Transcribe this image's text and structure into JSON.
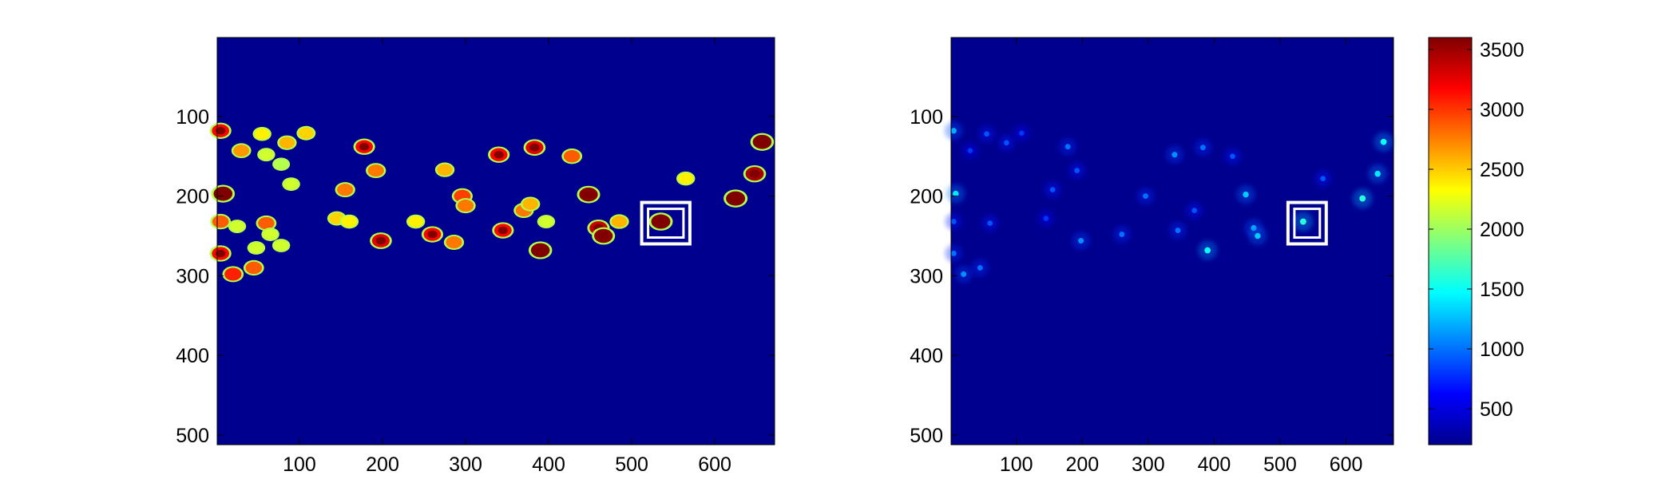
{
  "chart_data": [
    {
      "type": "heatmap",
      "title": "",
      "xlabel": "",
      "ylabel": "",
      "colormap": "jet",
      "background_color": "#00008f",
      "x_ticks": [
        "100",
        "200",
        "300",
        "400",
        "500",
        "600"
      ],
      "y_ticks": [
        "100",
        "200",
        "300",
        "400",
        "500"
      ],
      "xlim": [
        1,
        672
      ],
      "ylim": [
        1,
        512
      ],
      "y_reversed": true,
      "highlight_box": {
        "x": [
          512,
          570
        ],
        "y": [
          208,
          260
        ],
        "color": "#ffffff",
        "style": "double"
      },
      "blobs": [
        {
          "x": 5,
          "y": 118,
          "v": 3000
        },
        {
          "x": 30,
          "y": 143,
          "v": 2500
        },
        {
          "x": 55,
          "y": 122,
          "v": 2200
        },
        {
          "x": 60,
          "y": 148,
          "v": 2000
        },
        {
          "x": 85,
          "y": 133,
          "v": 2400
        },
        {
          "x": 108,
          "y": 121,
          "v": 2300
        },
        {
          "x": 78,
          "y": 160,
          "v": 1900
        },
        {
          "x": 90,
          "y": 185,
          "v": 2000
        },
        {
          "x": 178,
          "y": 138,
          "v": 3000
        },
        {
          "x": 192,
          "y": 168,
          "v": 2600
        },
        {
          "x": 275,
          "y": 167,
          "v": 2400
        },
        {
          "x": 340,
          "y": 148,
          "v": 3000
        },
        {
          "x": 383,
          "y": 139,
          "v": 3100
        },
        {
          "x": 428,
          "y": 150,
          "v": 2700
        },
        {
          "x": 565,
          "y": 178,
          "v": 2200
        },
        {
          "x": 648,
          "y": 172,
          "v": 3300
        },
        {
          "x": 657,
          "y": 132,
          "v": 3500
        },
        {
          "x": 8,
          "y": 197,
          "v": 3500
        },
        {
          "x": 155,
          "y": 192,
          "v": 2600
        },
        {
          "x": 296,
          "y": 200,
          "v": 2800
        },
        {
          "x": 300,
          "y": 212,
          "v": 2600
        },
        {
          "x": 370,
          "y": 218,
          "v": 2600
        },
        {
          "x": 378,
          "y": 210,
          "v": 2400
        },
        {
          "x": 448,
          "y": 198,
          "v": 3400
        },
        {
          "x": 625,
          "y": 203,
          "v": 3600
        },
        {
          "x": 5,
          "y": 232,
          "v": 2700
        },
        {
          "x": 25,
          "y": 238,
          "v": 2000
        },
        {
          "x": 60,
          "y": 234,
          "v": 2700
        },
        {
          "x": 65,
          "y": 248,
          "v": 2000
        },
        {
          "x": 145,
          "y": 228,
          "v": 2300
        },
        {
          "x": 160,
          "y": 232,
          "v": 2200
        },
        {
          "x": 240,
          "y": 232,
          "v": 2200
        },
        {
          "x": 260,
          "y": 248,
          "v": 3000
        },
        {
          "x": 345,
          "y": 243,
          "v": 3000
        },
        {
          "x": 397,
          "y": 232,
          "v": 2000
        },
        {
          "x": 460,
          "y": 240,
          "v": 3200
        },
        {
          "x": 466,
          "y": 250,
          "v": 3400
        },
        {
          "x": 485,
          "y": 232,
          "v": 2400
        },
        {
          "x": 535,
          "y": 232,
          "v": 3600
        },
        {
          "x": 198,
          "y": 256,
          "v": 3100
        },
        {
          "x": 286,
          "y": 258,
          "v": 2600
        },
        {
          "x": 390,
          "y": 268,
          "v": 3500
        },
        {
          "x": 48,
          "y": 265,
          "v": 2000
        },
        {
          "x": 78,
          "y": 262,
          "v": 2000
        },
        {
          "x": 5,
          "y": 272,
          "v": 3000
        },
        {
          "x": 20,
          "y": 298,
          "v": 2900
        },
        {
          "x": 45,
          "y": 290,
          "v": 2700
        }
      ]
    },
    {
      "type": "heatmap",
      "title": "",
      "xlabel": "",
      "ylabel": "",
      "colormap": "jet",
      "background_color": "#00008f",
      "x_ticks": [
        "100",
        "200",
        "300",
        "400",
        "500",
        "600"
      ],
      "y_ticks": [
        "100",
        "200",
        "300",
        "400",
        "500"
      ],
      "xlim": [
        1,
        672
      ],
      "ylim": [
        1,
        512
      ],
      "y_reversed": true,
      "highlight_box": {
        "x": [
          512,
          570
        ],
        "y": [
          208,
          260
        ],
        "color": "#ffffff",
        "style": "double"
      },
      "colorbar": {
        "range": [
          200,
          3600
        ],
        "ticks": [
          "3500",
          "3000",
          "2500",
          "2000",
          "1500",
          "1000",
          "500"
        ]
      },
      "blobs": [
        {
          "x": 5,
          "y": 118,
          "v": 1200
        },
        {
          "x": 30,
          "y": 143,
          "v": 800
        },
        {
          "x": 55,
          "y": 122,
          "v": 900
        },
        {
          "x": 85,
          "y": 133,
          "v": 900
        },
        {
          "x": 108,
          "y": 121,
          "v": 800
        },
        {
          "x": 178,
          "y": 138,
          "v": 1000
        },
        {
          "x": 192,
          "y": 168,
          "v": 900
        },
        {
          "x": 340,
          "y": 148,
          "v": 1100
        },
        {
          "x": 383,
          "y": 139,
          "v": 1000
        },
        {
          "x": 428,
          "y": 150,
          "v": 900
        },
        {
          "x": 565,
          "y": 178,
          "v": 900
        },
        {
          "x": 648,
          "y": 172,
          "v": 1400
        },
        {
          "x": 657,
          "y": 132,
          "v": 1500
        },
        {
          "x": 8,
          "y": 197,
          "v": 1400
        },
        {
          "x": 155,
          "y": 192,
          "v": 900
        },
        {
          "x": 296,
          "y": 200,
          "v": 1000
        },
        {
          "x": 370,
          "y": 218,
          "v": 900
        },
        {
          "x": 448,
          "y": 198,
          "v": 1300
        },
        {
          "x": 625,
          "y": 203,
          "v": 1600
        },
        {
          "x": 5,
          "y": 232,
          "v": 900
        },
        {
          "x": 60,
          "y": 234,
          "v": 900
        },
        {
          "x": 145,
          "y": 228,
          "v": 800
        },
        {
          "x": 260,
          "y": 248,
          "v": 1000
        },
        {
          "x": 345,
          "y": 243,
          "v": 1000
        },
        {
          "x": 460,
          "y": 240,
          "v": 1200
        },
        {
          "x": 466,
          "y": 250,
          "v": 1300
        },
        {
          "x": 535,
          "y": 232,
          "v": 1600
        },
        {
          "x": 198,
          "y": 256,
          "v": 1100
        },
        {
          "x": 390,
          "y": 268,
          "v": 1500
        },
        {
          "x": 5,
          "y": 272,
          "v": 1000
        },
        {
          "x": 20,
          "y": 298,
          "v": 1100
        },
        {
          "x": 45,
          "y": 290,
          "v": 1000
        }
      ]
    }
  ]
}
